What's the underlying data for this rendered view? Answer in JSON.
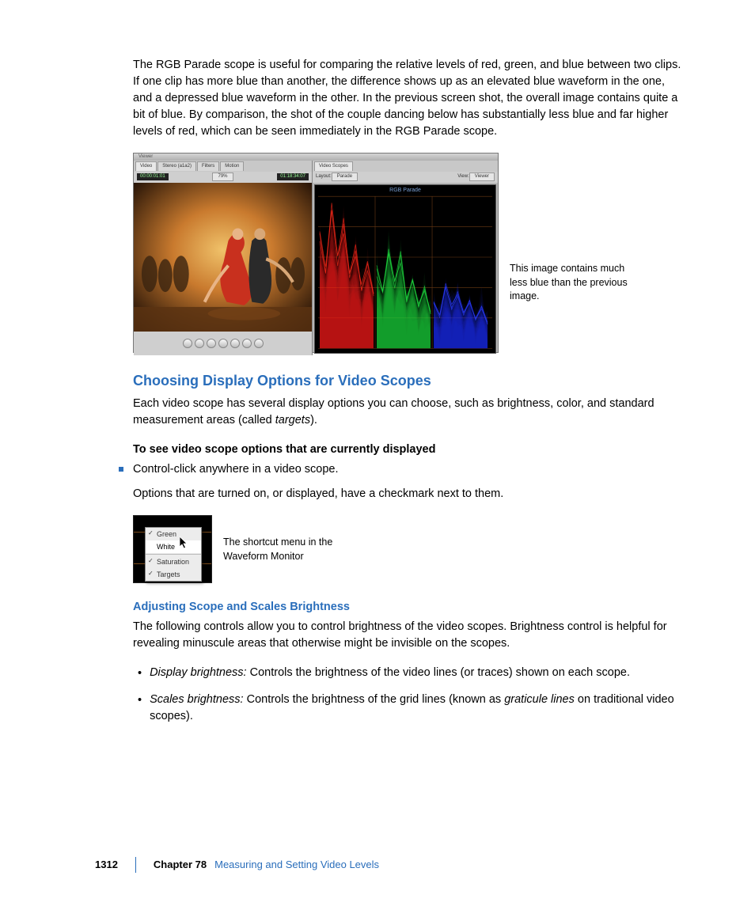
{
  "intro_para": "The RGB Parade scope is useful for comparing the relative levels of red, green, and blue between two clips. If one clip has more blue than another, the difference shows up as an elevated blue waveform in the one, and a depressed blue waveform in the other. In the previous screen shot, the overall image contains quite a bit of blue. By comparison, the shot of the couple dancing below has substantially less blue and far higher levels of red, which can be seen immediately in the RGB Parade scope.",
  "fig1": {
    "titlebar": "Viewer",
    "tabs": [
      "Video",
      "Stereo (a1a2)",
      "Filters",
      "Motion"
    ],
    "tc_left": "00:00:01:01",
    "tc_right": "01:18:34:07",
    "scope_tab": "Video Scopes",
    "layout_label": "Layout:",
    "layout_value": "Parade",
    "view_label": "View:",
    "view_value": "Viewer",
    "scope_title": "RGB Parade",
    "caption": "This image contains much less blue than the previous image.",
    "waveforms": {
      "red": {
        "color": "#ff2a1a",
        "peaks": [
          0.78,
          0.55,
          0.96,
          0.62,
          0.88,
          0.5,
          0.7,
          0.42,
          0.6,
          0.38
        ]
      },
      "green": {
        "color": "#20e040",
        "peaks": [
          0.55,
          0.38,
          0.72,
          0.45,
          0.64,
          0.34,
          0.5,
          0.3,
          0.42,
          0.26
        ]
      },
      "blue": {
        "color": "#2a3aff",
        "peaks": [
          0.32,
          0.22,
          0.46,
          0.3,
          0.4,
          0.24,
          0.34,
          0.2,
          0.3,
          0.18
        ]
      }
    },
    "dance_bg_gradient": [
      "#2a1208",
      "#d07830",
      "#f0c070",
      "#3a1a08"
    ]
  },
  "h2": "Choosing Display Options for Video Scopes",
  "h2_para": "Each video scope has several display options you can choose, such as brightness, color, and standard measurement areas (called ",
  "h2_para_ital": "targets",
  "h2_para_end": ").",
  "bold_lead": "To see video scope options that are currently displayed",
  "bullet1": "Control-click anywhere in a video scope.",
  "options_para": "Options that are turned on, or displayed, have a checkmark next to them.",
  "fig2": {
    "items": [
      "Green",
      "White",
      "Saturation",
      "Targets"
    ],
    "checked": [
      true,
      false,
      true,
      true
    ],
    "highlight_index": 1,
    "caption": "The shortcut menu in the Waveform Monitor"
  },
  "h3": "Adjusting Scope and Scales Brightness",
  "h3_para": "The following controls allow you to control brightness of the video scopes. Brightness control is helpful for revealing minuscule areas that otherwise might be invisible on the scopes.",
  "defs": [
    {
      "term": "Display brightness:",
      "body": "  Controls the brightness of the video lines (or traces) shown on each scope."
    },
    {
      "term": "Scales brightness:",
      "body": "  Controls the brightness of the grid lines (known as ",
      "ital": "graticule lines",
      "body2": " on traditional video scopes)."
    }
  ],
  "footer": {
    "page": "1312",
    "chapter": "Chapter 78",
    "title": "Measuring and Setting Video Levels"
  }
}
